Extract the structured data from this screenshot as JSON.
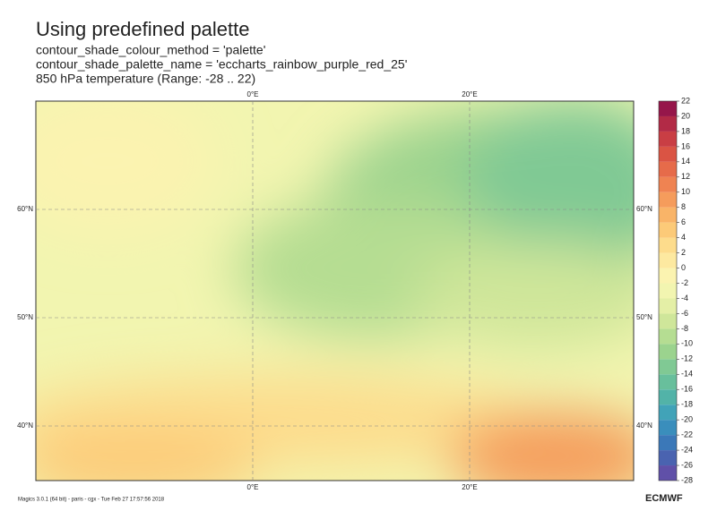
{
  "header": {
    "title": "Using predefined palette",
    "subtitles": [
      "contour_shade_colour_method = 'palette'",
      "contour_shade_palette_name = 'eccharts_rainbow_purple_red_25'",
      "850 hPa temperature  (Range: -28 .. 22)"
    ]
  },
  "map": {
    "lon_labels": [
      {
        "value": 0,
        "label": "0°E"
      },
      {
        "value": 20,
        "label": "20°E"
      }
    ],
    "lat_labels": [
      {
        "value": 60,
        "label": "60°N"
      },
      {
        "value": 50,
        "label": "50°N"
      },
      {
        "value": 40,
        "label": "40°N"
      }
    ]
  },
  "colorbar": {
    "levels": [
      -28,
      -26,
      -24,
      -22,
      -20,
      -18,
      -16,
      -14,
      -12,
      -10,
      -8,
      -6,
      -4,
      -2,
      0,
      2,
      4,
      6,
      8,
      10,
      12,
      14,
      16,
      18,
      20,
      22
    ],
    "colors": [
      "#6050a8",
      "#4a63b0",
      "#3b78b8",
      "#3a8ebc",
      "#41a3b8",
      "#52b3a8",
      "#68bf9c",
      "#80c994",
      "#9bd38e",
      "#b5dd92",
      "#cfe69a",
      "#e4efa6",
      "#f2f5b0",
      "#fbf3b0",
      "#fde9a0",
      "#fddc8c",
      "#fcca78",
      "#f9b468",
      "#f59c5c",
      "#ef8352",
      "#e66b4a",
      "#da5444",
      "#c93e44",
      "#b22a46",
      "#96164a"
    ]
  },
  "footer": {
    "credit": "Magics 3.0.1 (64 bit) - paris - cgx - Tue Feb 27 17:57:56 2018",
    "logo": "ECMWF"
  }
}
